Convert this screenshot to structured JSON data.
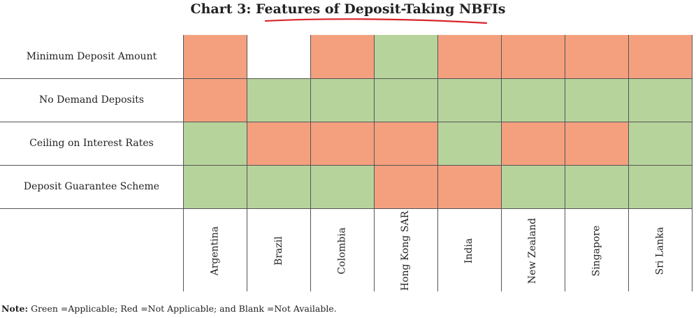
{
  "title_prefix": "Chart 3: ",
  "title_main": "Features of Deposit-Taking NBFIs",
  "note_label": "Note:",
  "note_text": "Green =Applicable; Red =Not Applicable; and Blank =Not Available.",
  "colors": {
    "applicable": "#b7d39c",
    "not_applicable": "#f4a07f",
    "not_available": "#ffffff",
    "grid_line": "#555555",
    "title_underline": "#d9252b"
  },
  "chart_data": {
    "type": "heatmap",
    "title": "Chart 3: Features of Deposit-Taking NBFIs",
    "rows": [
      "Minimum Deposit Amount",
      "No Demand Deposits",
      "Ceiling on Interest Rates",
      "Deposit Guarantee Scheme"
    ],
    "columns": [
      "Argentina",
      "Brazil",
      "Colombia",
      "Hong Kong SAR",
      "India",
      "New Zealand",
      "Singapore",
      "Sri Lanka"
    ],
    "legend": {
      "G": "Applicable",
      "R": "Not Applicable",
      "B": "Not Available"
    },
    "values": [
      [
        "R",
        "B",
        "R",
        "G",
        "R",
        "R",
        "R",
        "R"
      ],
      [
        "R",
        "G",
        "G",
        "G",
        "G",
        "G",
        "G",
        "G"
      ],
      [
        "G",
        "R",
        "R",
        "R",
        "G",
        "R",
        "R",
        "G"
      ],
      [
        "G",
        "G",
        "G",
        "R",
        "R",
        "G",
        "G",
        "G"
      ]
    ]
  }
}
